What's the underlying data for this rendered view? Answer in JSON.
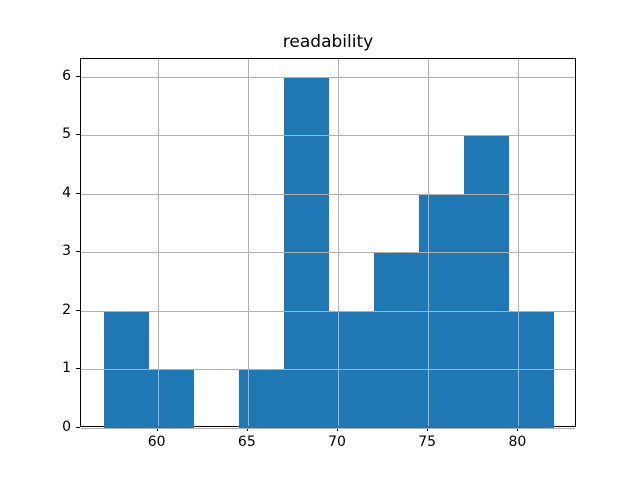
{
  "title": "readability",
  "colors": {
    "bar": "#1f77b4",
    "grid": "#b0b0b0",
    "spine": "#000000",
    "background": "#ffffff",
    "text": "#000000"
  },
  "chart_data": {
    "type": "bar",
    "subtype": "histogram",
    "title": "readability",
    "xlabel": "",
    "ylabel": "",
    "bin_edges": [
      57,
      59.5,
      62,
      64.5,
      67,
      69.5,
      72,
      74.5,
      77,
      79.5,
      82
    ],
    "counts": [
      2,
      1,
      0,
      1,
      6,
      2,
      3,
      4,
      5,
      2
    ],
    "xticks": [
      60,
      65,
      70,
      75,
      80
    ],
    "yticks": [
      0,
      1,
      2,
      3,
      4,
      5,
      6
    ],
    "xlim": [
      55.75,
      83.25
    ],
    "ylim": [
      0,
      6.3
    ],
    "grid": true,
    "grid_above_bars": true,
    "legend": null
  }
}
